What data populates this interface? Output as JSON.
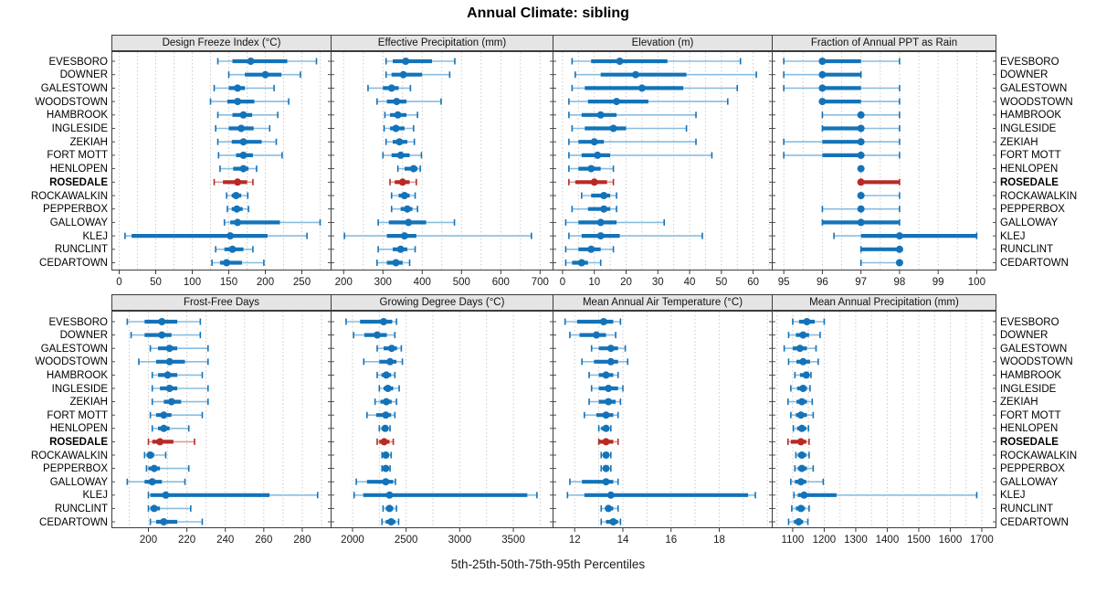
{
  "chart_data": {
    "type": "dotplot-percentiles",
    "title": "Annual Climate: sibling",
    "xlabel": "5th-25th-50th-75th-95th Percentiles",
    "percentile_labels": [
      "5th",
      "25th",
      "50th",
      "75th",
      "95th"
    ],
    "legend_position": "none",
    "grid": "dotted-vertical-minor",
    "sites": [
      "EVESBORO",
      "DOWNER",
      "GALESTOWN",
      "WOODSTOWN",
      "HAMBROOK",
      "INGLESIDE",
      "ZEKIAH",
      "FORT MOTT",
      "HENLOPEN",
      "ROSEDALE",
      "ROCKAWALKIN",
      "PEPPERBOX",
      "GALLOWAY",
      "KLEJ",
      "RUNCLINT",
      "CEDARTOWN"
    ],
    "highlight_site": "ROSEDALE",
    "colors": {
      "series": "#1473b8",
      "series_light": "#8abde0",
      "highlight": "#b82a25",
      "highlight_light": "#dd9b94",
      "strip_bg": "#e5e5e5",
      "gridline": "#cccccc",
      "border": "#3c3c3c"
    },
    "panels": [
      {
        "label": "Design Freeze Index (°C)",
        "row": 0,
        "col": 0,
        "xlim": [
          -10,
          290
        ],
        "major_ticks": [
          0,
          50,
          100,
          150,
          200,
          250
        ],
        "minor_step": 25,
        "values": [
          [
            135,
            155,
            180,
            230,
            270
          ],
          [
            150,
            172,
            200,
            222,
            248
          ],
          [
            130,
            150,
            162,
            172,
            212
          ],
          [
            125,
            148,
            162,
            185,
            232
          ],
          [
            135,
            155,
            170,
            182,
            217
          ],
          [
            132,
            150,
            167,
            184,
            206
          ],
          [
            135,
            154,
            170,
            195,
            215
          ],
          [
            136,
            160,
            170,
            183,
            223
          ],
          [
            138,
            156,
            170,
            177,
            188
          ],
          [
            130,
            142,
            162,
            175,
            183
          ],
          [
            147,
            154,
            160,
            167,
            176
          ],
          [
            148,
            154,
            161,
            169,
            177
          ],
          [
            144,
            152,
            162,
            220,
            275
          ],
          [
            8,
            17,
            152,
            203,
            257
          ],
          [
            132,
            144,
            155,
            170,
            183
          ],
          [
            127,
            138,
            147,
            168,
            198
          ]
        ]
      },
      {
        "label": "Effective Precipitation (mm)",
        "row": 0,
        "col": 1,
        "xlim": [
          168,
          733
        ],
        "major_ticks": [
          200,
          300,
          400,
          500,
          600,
          700
        ],
        "minor_step": 50,
        "values": [
          [
            308,
            325,
            358,
            425,
            483
          ],
          [
            308,
            322,
            352,
            400,
            470
          ],
          [
            262,
            300,
            322,
            340,
            370
          ],
          [
            285,
            310,
            335,
            360,
            448
          ],
          [
            305,
            318,
            338,
            360,
            388
          ],
          [
            303,
            318,
            333,
            355,
            378
          ],
          [
            308,
            325,
            342,
            362,
            380
          ],
          [
            300,
            322,
            345,
            368,
            398
          ],
          [
            338,
            355,
            378,
            388,
            395
          ],
          [
            318,
            330,
            350,
            368,
            385
          ],
          [
            322,
            340,
            355,
            368,
            382
          ],
          [
            322,
            345,
            362,
            375,
            388
          ],
          [
            288,
            315,
            365,
            410,
            482
          ],
          [
            202,
            310,
            355,
            385,
            678
          ],
          [
            288,
            325,
            345,
            362,
            382
          ],
          [
            285,
            310,
            333,
            350,
            368
          ]
        ]
      },
      {
        "label": "Elevation (m)",
        "row": 0,
        "col": 2,
        "xlim": [
          -3,
          66
        ],
        "major_ticks": [
          0,
          10,
          20,
          30,
          40,
          50,
          60
        ],
        "minor_step": 5,
        "values": [
          [
            3,
            9,
            18,
            33,
            56
          ],
          [
            4,
            12,
            23,
            39,
            61
          ],
          [
            3,
            7,
            25,
            38,
            55
          ],
          [
            2,
            8,
            17,
            27,
            52
          ],
          [
            2,
            6,
            12,
            17,
            42
          ],
          [
            3,
            7,
            16,
            20,
            39
          ],
          [
            2,
            5,
            10,
            13,
            42
          ],
          [
            2,
            6,
            11,
            15,
            47
          ],
          [
            2,
            5,
            9,
            12,
            16
          ],
          [
            2,
            4,
            10,
            14,
            16
          ],
          [
            6,
            9,
            13,
            15,
            17
          ],
          [
            3,
            8,
            13,
            15,
            17
          ],
          [
            1,
            5,
            12,
            17,
            32
          ],
          [
            2,
            6,
            12,
            18,
            44
          ],
          [
            1,
            5,
            9,
            12,
            16
          ],
          [
            1,
            3,
            6,
            8,
            12
          ]
        ]
      },
      {
        "label": "Fraction of Annual PPT as Rain",
        "row": 0,
        "col": 3,
        "xlim": [
          94.7,
          100.5
        ],
        "major_ticks": [
          95,
          96,
          97,
          98,
          99,
          100
        ],
        "minor_step": 0.5,
        "values": [
          [
            95,
            96,
            96,
            97,
            98
          ],
          [
            95,
            96,
            96,
            97,
            97
          ],
          [
            95,
            96,
            96,
            97,
            98
          ],
          [
            96,
            96,
            96,
            97,
            98
          ],
          [
            96,
            97,
            97,
            97,
            98
          ],
          [
            96,
            96,
            97,
            97,
            98
          ],
          [
            95,
            96,
            97,
            97,
            98
          ],
          [
            95,
            96,
            97,
            97,
            98
          ],
          [
            97,
            97,
            97,
            97,
            97
          ],
          [
            97,
            97,
            97,
            98,
            98
          ],
          [
            97,
            97,
            97,
            97,
            98
          ],
          [
            96,
            97,
            97,
            97,
            98
          ],
          [
            96,
            96,
            97,
            98,
            98
          ],
          [
            96.3,
            97,
            98,
            100,
            100
          ],
          [
            97,
            97,
            98,
            98,
            98
          ],
          [
            97,
            98,
            98,
            98,
            98
          ]
        ]
      },
      {
        "label": "Frost-Free Days",
        "row": 1,
        "col": 0,
        "xlim": [
          181,
          295
        ],
        "major_ticks": [
          200,
          220,
          240,
          260,
          280
        ],
        "minor_step": 10,
        "values": [
          [
            189,
            198,
            207,
            215,
            227
          ],
          [
            191,
            198,
            207,
            212,
            227
          ],
          [
            201,
            205,
            211,
            215,
            231
          ],
          [
            195,
            204,
            211,
            219,
            231
          ],
          [
            202,
            205,
            210,
            215,
            228
          ],
          [
            202,
            206,
            211,
            215,
            231
          ],
          [
            202,
            208,
            212,
            217,
            231
          ],
          [
            201,
            204,
            208,
            212,
            228
          ],
          [
            202,
            205,
            208,
            211,
            221
          ],
          [
            200,
            202,
            206,
            213,
            224
          ],
          [
            198,
            199,
            201,
            203,
            209
          ],
          [
            199,
            200,
            203,
            206,
            221
          ],
          [
            189,
            198,
            202,
            207,
            219
          ],
          [
            200,
            201,
            209,
            263,
            288
          ],
          [
            200,
            201,
            203,
            206,
            222
          ],
          [
            201,
            204,
            208,
            215,
            228
          ]
        ]
      },
      {
        "label": "Growing Degree Days (°C)",
        "row": 1,
        "col": 1,
        "xlim": [
          1800,
          3870
        ],
        "major_ticks": [
          2000,
          2500,
          3000,
          3500
        ],
        "minor_step": 250,
        "values": [
          [
            1940,
            2070,
            2290,
            2370,
            2410
          ],
          [
            2010,
            2110,
            2230,
            2320,
            2395
          ],
          [
            2230,
            2290,
            2365,
            2415,
            2455
          ],
          [
            2105,
            2250,
            2350,
            2410,
            2465
          ],
          [
            2230,
            2270,
            2315,
            2360,
            2395
          ],
          [
            2250,
            2290,
            2330,
            2380,
            2435
          ],
          [
            2210,
            2260,
            2315,
            2365,
            2410
          ],
          [
            2135,
            2220,
            2310,
            2360,
            2395
          ],
          [
            2250,
            2270,
            2305,
            2330,
            2350
          ],
          [
            2230,
            2250,
            2295,
            2345,
            2380
          ],
          [
            2275,
            2285,
            2310,
            2340,
            2360
          ],
          [
            2275,
            2285,
            2310,
            2330,
            2350
          ],
          [
            2035,
            2135,
            2310,
            2380,
            2400
          ],
          [
            2015,
            2100,
            2345,
            3630,
            3720
          ],
          [
            2285,
            2310,
            2345,
            2380,
            2410
          ],
          [
            2275,
            2310,
            2360,
            2400,
            2430
          ]
        ]
      },
      {
        "label": "Mean Annual Air Temperature (°C)",
        "row": 1,
        "col": 2,
        "xlim": [
          11.1,
          20.2
        ],
        "major_ticks": [
          12,
          14,
          16,
          18
        ],
        "minor_step": 1,
        "values": [
          [
            11.6,
            12.1,
            13.2,
            13.6,
            13.9
          ],
          [
            11.8,
            12.2,
            12.9,
            13.3,
            13.7
          ],
          [
            12.7,
            13.0,
            13.5,
            13.8,
            14.1
          ],
          [
            12.3,
            12.8,
            13.5,
            13.8,
            14.2
          ],
          [
            12.6,
            13.0,
            13.3,
            13.6,
            13.8
          ],
          [
            12.7,
            13.0,
            13.4,
            13.8,
            14.0
          ],
          [
            12.6,
            13.0,
            13.4,
            13.7,
            13.9
          ],
          [
            12.4,
            12.9,
            13.3,
            13.6,
            13.8
          ],
          [
            13.0,
            13.1,
            13.3,
            13.4,
            13.5
          ],
          [
            13.0,
            13.0,
            13.3,
            13.6,
            13.8
          ],
          [
            13.1,
            13.2,
            13.3,
            13.4,
            13.5
          ],
          [
            13.1,
            13.2,
            13.3,
            13.4,
            13.5
          ],
          [
            11.8,
            12.3,
            13.3,
            13.6,
            13.8
          ],
          [
            11.7,
            12.4,
            13.5,
            19.2,
            19.5
          ],
          [
            13.1,
            13.3,
            13.4,
            13.6,
            13.8
          ],
          [
            13.1,
            13.3,
            13.6,
            13.8,
            13.9
          ]
        ]
      },
      {
        "label": "Mean Annual Precipitation (mm)",
        "row": 1,
        "col": 3,
        "xlim": [
          1035,
          1745
        ],
        "major_ticks": [
          1100,
          1200,
          1300,
          1400,
          1500,
          1600,
          1700
        ],
        "minor_step": 50,
        "values": [
          [
            1100,
            1120,
            1145,
            1170,
            1200
          ],
          [
            1087,
            1110,
            1133,
            1152,
            1187
          ],
          [
            1073,
            1100,
            1123,
            1145,
            1174
          ],
          [
            1087,
            1112,
            1133,
            1155,
            1181
          ],
          [
            1107,
            1123,
            1143,
            1152,
            1158
          ],
          [
            1094,
            1114,
            1133,
            1145,
            1155
          ],
          [
            1085,
            1112,
            1129,
            1145,
            1162
          ],
          [
            1094,
            1110,
            1126,
            1145,
            1165
          ],
          [
            1102,
            1114,
            1129,
            1143,
            1150
          ],
          [
            1085,
            1094,
            1126,
            1143,
            1152
          ],
          [
            1110,
            1116,
            1129,
            1143,
            1152
          ],
          [
            1107,
            1116,
            1129,
            1145,
            1165
          ],
          [
            1094,
            1107,
            1126,
            1143,
            1197
          ],
          [
            1104,
            1116,
            1136,
            1239,
            1684
          ],
          [
            1097,
            1110,
            1126,
            1139,
            1152
          ],
          [
            1087,
            1104,
            1119,
            1133,
            1148
          ]
        ]
      }
    ]
  }
}
